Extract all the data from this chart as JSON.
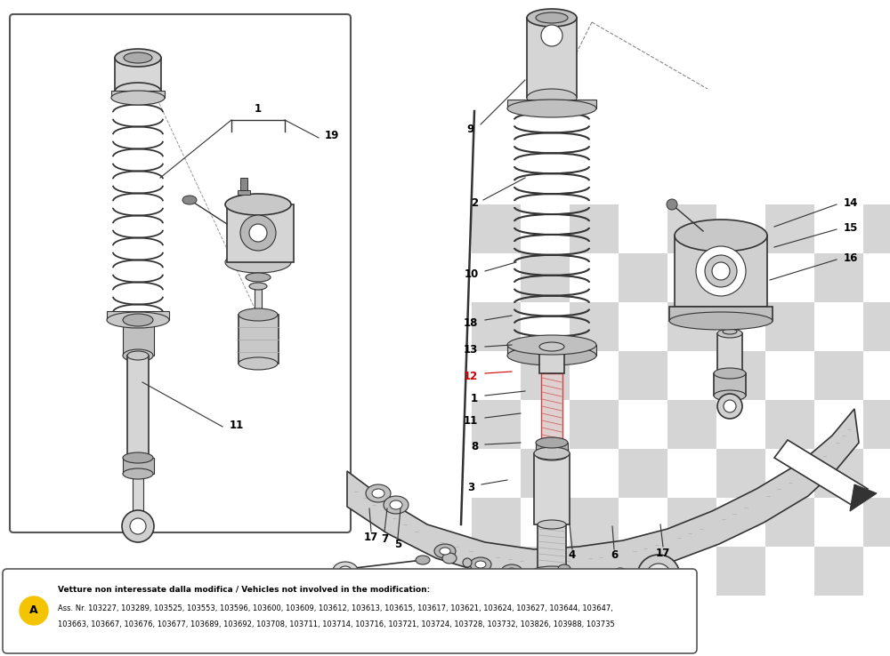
{
  "bg_color": "#f5f5f0",
  "fig_width": 10.0,
  "fig_height": 7.38,
  "dpi": 100,
  "note_line1": "Vetture non interessate dalla modifica / Vehicles not involved in the modification:",
  "note_line2": "Ass. Nr. 103227, 103289, 103525, 103553, 103596, 103600, 103609, 103612, 103613, 103615, 103617, 103621, 103624, 103627, 103644, 103647,",
  "note_line3": "103663, 103667, 103676, 103677, 103689, 103692, 103708, 103711, 103714, 103716, 103721, 103724, 103728, 103732, 103826, 103988, 103735",
  "circle_A_color": "#f5c400",
  "circle_A_text": "A",
  "watermark_color": "#e8b0b0",
  "checker_color": "#e0e0e0",
  "line_color": "#333333",
  "part_label_color_normal": "#000000",
  "part_label_color_red": "#cc0000"
}
